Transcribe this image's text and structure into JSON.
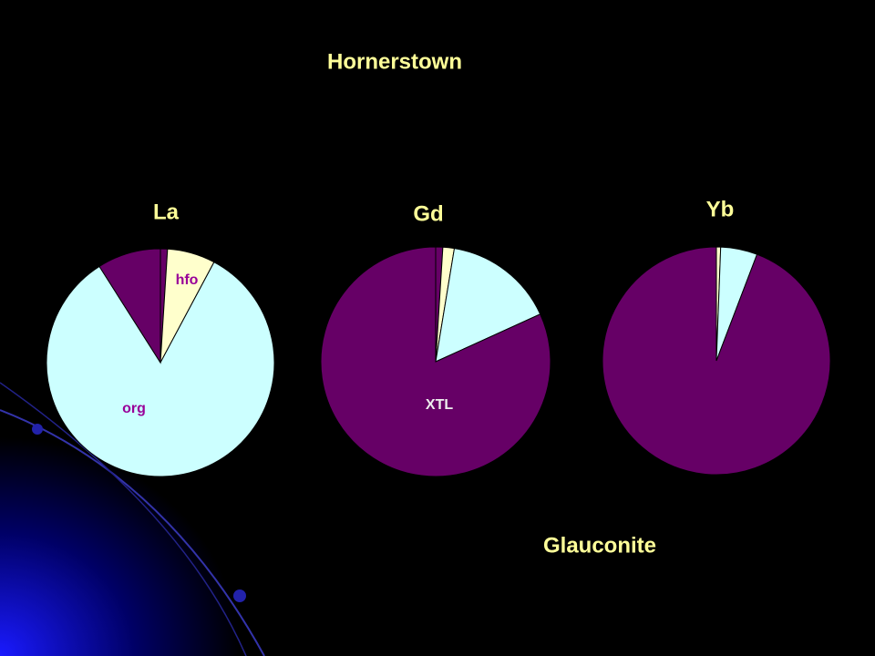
{
  "slide": {
    "title": "Hornerstown",
    "caption": "Glauconite"
  },
  "chart_data": [
    {
      "type": "pie",
      "title": "La",
      "categories": [
        null,
        "hfo",
        "org",
        null
      ],
      "values": [
        1,
        6.8,
        83.2,
        9
      ],
      "colors": [
        "#660066",
        "#ffffcc",
        "#ccffff",
        "#660066"
      ]
    },
    {
      "type": "pie",
      "title": "Gd",
      "categories": [
        null,
        null,
        null,
        "XTL"
      ],
      "values": [
        1,
        1.6,
        15.6,
        81.8
      ],
      "colors": [
        "#660066",
        "#ffffcc",
        "#ccffff",
        "#660066"
      ]
    },
    {
      "type": "pie",
      "title": "Yb",
      "categories": [
        null,
        null,
        null
      ],
      "values": [
        0.6,
        5.2,
        94.2
      ],
      "colors": [
        "#ffffcc",
        "#ccffff",
        "#660066"
      ]
    }
  ]
}
